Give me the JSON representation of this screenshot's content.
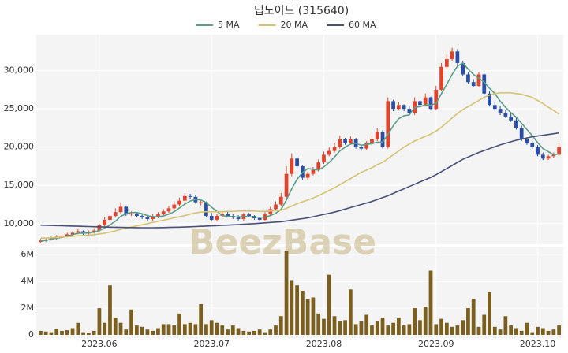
{
  "chart_data": {
    "type": "candlestick",
    "title": "딥노이드 (315640)",
    "watermark": "BeezBase",
    "grid": true,
    "categories": [
      null,
      null,
      null,
      null,
      null,
      null,
      null,
      null,
      null,
      null,
      null,
      "2023.06",
      null,
      null,
      null,
      null,
      null,
      null,
      null,
      null,
      null,
      null,
      null,
      null,
      null,
      null,
      null,
      null,
      null,
      null,
      null,
      null,
      "2023.07",
      null,
      null,
      null,
      null,
      null,
      null,
      null,
      null,
      null,
      null,
      null,
      null,
      null,
      null,
      null,
      null,
      null,
      null,
      null,
      null,
      "2023.08",
      null,
      null,
      null,
      null,
      null,
      null,
      null,
      null,
      null,
      null,
      null,
      null,
      null,
      null,
      null,
      null,
      null,
      null,
      null,
      null,
      "2023.09",
      null,
      null,
      null,
      null,
      null,
      null,
      null,
      null,
      null,
      null,
      null,
      null,
      null,
      null,
      null,
      null,
      null,
      null,
      "2023.10",
      null,
      null,
      null,
      null
    ],
    "open": [
      7600,
      7800,
      7900,
      8100,
      8300,
      8400,
      8600,
      8800,
      9000,
      8700,
      8900,
      9100,
      9800,
      10500,
      11000,
      11500,
      12200,
      11200,
      11300,
      11000,
      10800,
      10600,
      10900,
      11200,
      11600,
      12000,
      12500,
      13000,
      13600,
      13500,
      12800,
      12800,
      11000,
      10500,
      11000,
      11300,
      11000,
      10800,
      10600,
      11200,
      11000,
      10700,
      10500,
      11200,
      11900,
      12500,
      13500,
      16500,
      18500,
      17500,
      16000,
      16500,
      17000,
      18000,
      19000,
      19500,
      20000,
      21000,
      20500,
      21000,
      20000,
      19800,
      20500,
      21000,
      22000,
      20000,
      26000,
      25000,
      25500,
      25000,
      24500,
      26000,
      25500,
      26500,
      25000,
      27500,
      30500,
      31500,
      32500,
      31000,
      29500,
      28500,
      28000,
      29500,
      27000,
      25500,
      25000,
      24500,
      24000,
      23500,
      22500,
      21000,
      20500,
      20000,
      19000,
      18500,
      18800,
      19000
    ],
    "high": [
      8000,
      8100,
      8300,
      8500,
      8600,
      8800,
      9000,
      9300,
      9100,
      9100,
      9400,
      10000,
      10800,
      11300,
      12000,
      12800,
      12300,
      11600,
      11500,
      11200,
      11000,
      11200,
      11500,
      11900,
      12300,
      12900,
      13400,
      14000,
      13900,
      13700,
      13000,
      12900,
      11400,
      11300,
      11500,
      11600,
      11300,
      11100,
      11400,
      11400,
      11100,
      10900,
      11500,
      12200,
      12900,
      14000,
      17500,
      19200,
      18800,
      17600,
      16800,
      17400,
      18400,
      19400,
      20000,
      20500,
      21500,
      21200,
      21400,
      21200,
      20300,
      20800,
      21500,
      22500,
      22200,
      26500,
      26200,
      25900,
      25600,
      25300,
      26500,
      26300,
      27000,
      26600,
      28000,
      31000,
      32200,
      33000,
      32800,
      31300,
      29800,
      28900,
      29800,
      29600,
      27300,
      25900,
      25400,
      24900,
      24400,
      23900,
      22800,
      21300,
      20800,
      20300,
      19300,
      19000,
      19300,
      20500
    ],
    "low": [
      7400,
      7600,
      7800,
      7900,
      8100,
      8200,
      8400,
      8600,
      8500,
      8500,
      8700,
      8900,
      9600,
      10300,
      10800,
      11300,
      11000,
      11000,
      10900,
      10600,
      10400,
      10400,
      10700,
      11000,
      11400,
      11800,
      12300,
      12800,
      13200,
      12600,
      12400,
      10800,
      10300,
      10300,
      10800,
      10800,
      10600,
      10400,
      10400,
      10800,
      10500,
      10300,
      10300,
      11000,
      11700,
      12300,
      13300,
      16200,
      17200,
      15700,
      15700,
      16300,
      16800,
      17800,
      18800,
      19300,
      19800,
      20300,
      20300,
      19800,
      19500,
      19600,
      20300,
      20800,
      19800,
      19800,
      24700,
      24800,
      24700,
      24200,
      24200,
      25300,
      25300,
      24800,
      24800,
      27300,
      30200,
      31300,
      30800,
      29300,
      28300,
      27800,
      27800,
      26800,
      25300,
      24700,
      24200,
      23800,
      23300,
      22300,
      20800,
      20300,
      19800,
      18800,
      18300,
      18300,
      18600,
      18800
    ],
    "close": [
      7800,
      7900,
      8100,
      8300,
      8400,
      8600,
      8800,
      9000,
      8700,
      8900,
      9100,
      9800,
      10500,
      11000,
      11500,
      12200,
      11200,
      11300,
      11000,
      10800,
      10600,
      10900,
      11200,
      11600,
      12000,
      12500,
      13000,
      13600,
      13500,
      12800,
      12800,
      11000,
      10500,
      11000,
      11300,
      11000,
      10800,
      10600,
      11200,
      11000,
      10700,
      10500,
      11200,
      11900,
      12500,
      13500,
      16500,
      18500,
      17500,
      16000,
      16500,
      17000,
      18000,
      19000,
      19500,
      20000,
      21000,
      20500,
      21000,
      20000,
      19800,
      20500,
      21000,
      22000,
      20000,
      26000,
      25000,
      25500,
      25000,
      24500,
      26000,
      25500,
      26500,
      25000,
      27500,
      30500,
      31500,
      32500,
      31000,
      29500,
      28500,
      28000,
      29500,
      27000,
      25500,
      25000,
      24500,
      24000,
      23500,
      22500,
      21000,
      20500,
      20000,
      19000,
      18500,
      18800,
      19000,
      20000
    ],
    "volume": [
      300000,
      250000,
      200000,
      450000,
      300000,
      350000,
      500000,
      900000,
      200000,
      150000,
      300000,
      2000000,
      900000,
      3700000,
      1300000,
      900000,
      400000,
      1900000,
      700000,
      600000,
      400000,
      300000,
      500000,
      800000,
      800000,
      700000,
      1600000,
      800000,
      900000,
      800000,
      2300000,
      800000,
      1100000,
      900000,
      700000,
      400000,
      700000,
      500000,
      300000,
      250000,
      300000,
      400000,
      200000,
      400000,
      700000,
      1400000,
      6300000,
      4100000,
      3700000,
      3300000,
      2700000,
      2800000,
      1600000,
      1200000,
      4500000,
      1400000,
      1000000,
      1100000,
      3400000,
      800000,
      1000000,
      1500000,
      700000,
      1000000,
      1300000,
      700000,
      900000,
      1300000,
      700000,
      800000,
      2000000,
      1100000,
      2100000,
      4800000,
      800000,
      1200000,
      900000,
      600000,
      700000,
      1100000,
      2000000,
      2700000,
      600000,
      1500000,
      3200000,
      600000,
      400000,
      1400000,
      700000,
      500000,
      300000,
      900000,
      200000,
      600000,
      500000,
      300000,
      400000,
      700000
    ],
    "up_color": "#e0442c",
    "down_color": "#2b4ea6",
    "volume_color": "#7a5f1f",
    "ylim": [
      7300,
      34700
    ],
    "yticks": [
      {
        "value": 10000,
        "label": "10,000"
      },
      {
        "value": 15000,
        "label": "15,000"
      },
      {
        "value": 20000,
        "label": "20,000"
      },
      {
        "value": 25000,
        "label": "25,000"
      },
      {
        "value": 30000,
        "label": "30,000"
      }
    ],
    "volume_ylim": [
      0,
      6600000
    ],
    "volume_yticks": [
      0,
      {
        "value": 2000000,
        "label": "2M"
      },
      {
        "value": 4000000,
        "label": "4M"
      },
      {
        "value": 6000000,
        "label": "6M"
      }
    ],
    "series": [
      {
        "name": "5 MA",
        "color": "#5a9e8a",
        "values": [
          7700,
          7800,
          7950,
          8100,
          8200,
          8350,
          8550,
          8750,
          8750,
          8800,
          8900,
          9100,
          9400,
          9850,
          10300,
          10950,
          11300,
          11450,
          11450,
          11300,
          11050,
          10900,
          10900,
          11000,
          11250,
          11550,
          12050,
          12550,
          12950,
          13150,
          13100,
          12750,
          12150,
          11600,
          11050,
          10950,
          10900,
          10850,
          10950,
          10900,
          10850,
          10800,
          10850,
          11050,
          11350,
          11850,
          13100,
          14550,
          15800,
          16650,
          17200,
          17100,
          17000,
          17400,
          18000,
          18700,
          19500,
          20000,
          20400,
          20500,
          20250,
          20350,
          20450,
          20650,
          20650,
          21650,
          22800,
          23700,
          24100,
          24200,
          25200,
          25300,
          25500,
          25500,
          25700,
          27000,
          28200,
          29500,
          30600,
          31000,
          30200,
          29500,
          29000,
          28500,
          27700,
          27000,
          26000,
          25200,
          24500,
          23900,
          23100,
          22300,
          21500,
          20600,
          19800,
          19400,
          19000,
          19100
        ]
      },
      {
        "name": "20 MA",
        "color": "#d6c372",
        "values": [
          8100,
          8100,
          8150,
          8200,
          8250,
          8300,
          8350,
          8400,
          8450,
          8500,
          8550,
          8650,
          8750,
          8900,
          9050,
          9250,
          9400,
          9550,
          9700,
          9850,
          10000,
          10150,
          10300,
          10450,
          10600,
          10750,
          10900,
          11050,
          11250,
          11400,
          11500,
          11550,
          11550,
          11550,
          11550,
          11600,
          11600,
          11650,
          11650,
          11650,
          11650,
          11600,
          11600,
          11650,
          11700,
          11750,
          12000,
          12300,
          12600,
          12850,
          13100,
          13350,
          13650,
          14000,
          14350,
          14700,
          15100,
          15500,
          15900,
          16300,
          16700,
          17000,
          17300,
          17700,
          18000,
          18500,
          19000,
          19500,
          20000,
          20400,
          20800,
          21100,
          21400,
          21700,
          22100,
          22600,
          23200,
          23800,
          24400,
          24900,
          25300,
          25700,
          26100,
          26500,
          26800,
          27000,
          27100,
          27100,
          27100,
          27000,
          26900,
          26700,
          26500,
          26100,
          25700,
          25200,
          24800,
          24300
        ]
      },
      {
        "name": "60 MA",
        "color": "#4a5078",
        "values": [
          9800,
          9780,
          9760,
          9740,
          9720,
          9700,
          9680,
          9660,
          9640,
          9620,
          9600,
          9580,
          9560,
          9540,
          9520,
          9500,
          9490,
          9480,
          9470,
          9460,
          9460,
          9460,
          9470,
          9480,
          9500,
          9520,
          9540,
          9560,
          9590,
          9620,
          9650,
          9680,
          9710,
          9740,
          9770,
          9800,
          9840,
          9880,
          9920,
          9960,
          10000,
          10050,
          10100,
          10150,
          10200,
          10250,
          10350,
          10450,
          10550,
          10650,
          10750,
          10900,
          11050,
          11200,
          11350,
          11500,
          11700,
          11900,
          12100,
          12300,
          12500,
          12700,
          12900,
          13150,
          13400,
          13650,
          13950,
          14250,
          14550,
          14850,
          15150,
          15450,
          15750,
          16050,
          16400,
          16800,
          17200,
          17600,
          18000,
          18400,
          18700,
          19000,
          19300,
          19550,
          19800,
          20050,
          20300,
          20500,
          20700,
          20900,
          21050,
          21200,
          21350,
          21450,
          21550,
          21650,
          21750,
          21850
        ]
      }
    ]
  }
}
